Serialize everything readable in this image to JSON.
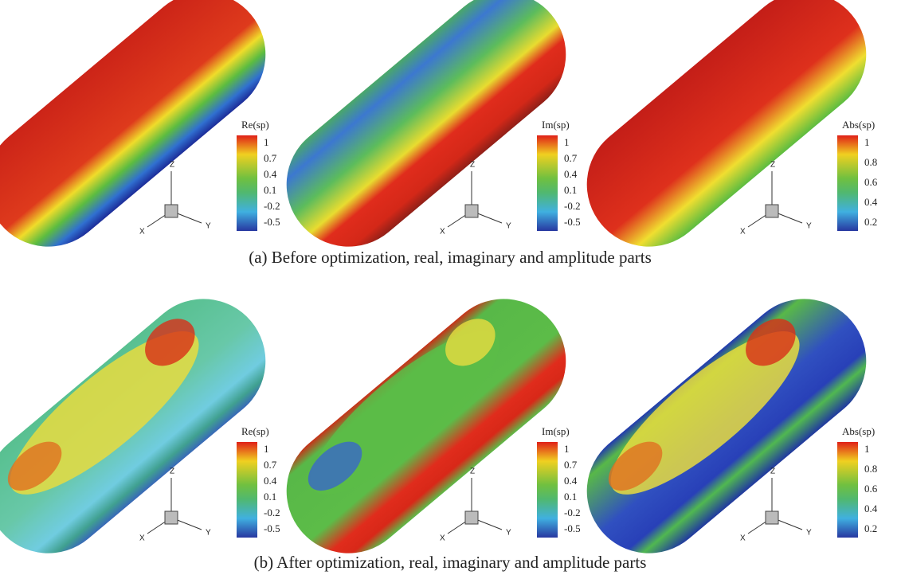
{
  "rows": [
    {
      "caption": "(a) Before optimization, real, imaginary and amplitude parts",
      "panels": [
        {
          "legend_title": "Re(sp)",
          "ticks": [
            "1",
            "0.7",
            "0.4",
            "0.1",
            "-0.2",
            "-0.5"
          ]
        },
        {
          "legend_title": "Im(sp)",
          "ticks": [
            "1",
            "0.7",
            "0.4",
            "0.1",
            "-0.2",
            "-0.5"
          ]
        },
        {
          "legend_title": "Abs(sp)",
          "ticks": [
            "1",
            "0.8",
            "0.6",
            "0.4",
            "0.2"
          ]
        }
      ]
    },
    {
      "caption": "(b) After optimization, real, imaginary and amplitude parts",
      "panels": [
        {
          "legend_title": "Re(sp)",
          "ticks": [
            "1",
            "0.7",
            "0.4",
            "0.1",
            "-0.2",
            "-0.5"
          ]
        },
        {
          "legend_title": "Im(sp)",
          "ticks": [
            "1",
            "0.7",
            "0.4",
            "0.1",
            "-0.2",
            "-0.5"
          ]
        },
        {
          "legend_title": "Abs(sp)",
          "ticks": [
            "1",
            "0.8",
            "0.6",
            "0.4",
            "0.2"
          ]
        }
      ]
    }
  ],
  "axis_labels": {
    "x": "X",
    "y": "Y",
    "z": "Z"
  }
}
